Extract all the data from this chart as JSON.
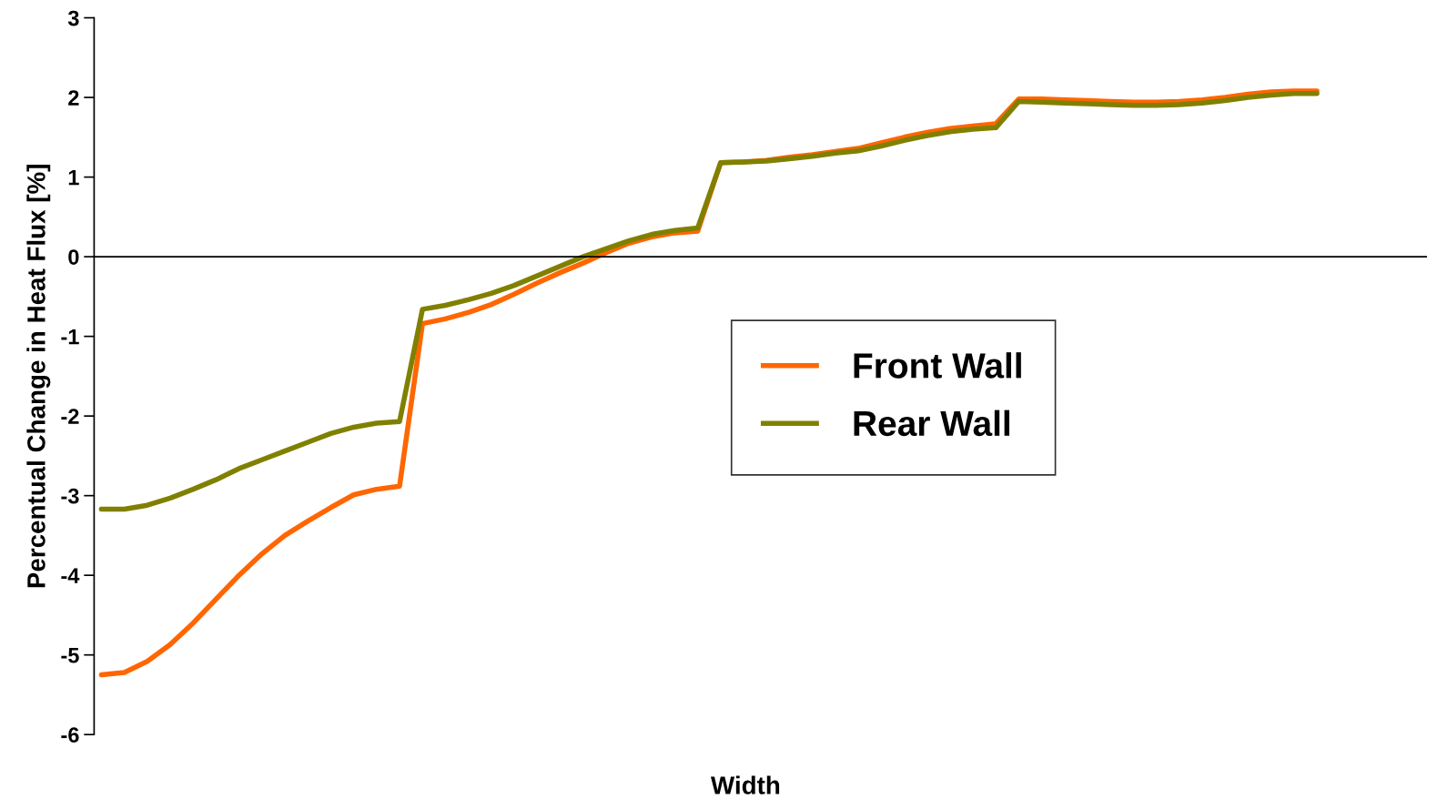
{
  "chart_data": {
    "type": "line",
    "xlabel": "Width",
    "ylabel": "Percentual Change in Heat Flux [%]",
    "categories": [
      null,
      null,
      null,
      null,
      null,
      null,
      null,
      null,
      null,
      null,
      null,
      null,
      null,
      null,
      null,
      null,
      null,
      null,
      null,
      null,
      null,
      null,
      null,
      null,
      null,
      null,
      null,
      null,
      null,
      null,
      null,
      null,
      null,
      null,
      null,
      null,
      null,
      null,
      null,
      null,
      null,
      null,
      null,
      null,
      null,
      null,
      null,
      null,
      null,
      null,
      null,
      null,
      null,
      null
    ],
    "series": [
      {
        "name": "Front Wall",
        "color": "#ff6600",
        "values": [
          -5.25,
          -5.22,
          -5.08,
          -4.87,
          -4.6,
          -4.3,
          -4.0,
          -3.73,
          -3.5,
          -3.32,
          -3.15,
          -2.99,
          -2.92,
          -2.88,
          -0.84,
          -0.78,
          -0.7,
          -0.6,
          -0.47,
          -0.33,
          -0.2,
          -0.08,
          0.05,
          0.17,
          0.25,
          0.3,
          0.32,
          1.18,
          1.19,
          1.21,
          1.25,
          1.28,
          1.32,
          1.36,
          1.43,
          1.5,
          1.56,
          1.61,
          1.64,
          1.67,
          1.98,
          1.98,
          1.97,
          1.96,
          1.95,
          1.94,
          1.94,
          1.95,
          1.97,
          2.0,
          2.04,
          2.07,
          2.08,
          2.08
        ]
      },
      {
        "name": "Rear Wall",
        "color": "#808000",
        "values": [
          -3.17,
          -3.17,
          -3.12,
          -3.03,
          -2.92,
          -2.8,
          -2.66,
          -2.55,
          -2.44,
          -2.33,
          -2.22,
          -2.14,
          -2.09,
          -2.07,
          -0.66,
          -0.61,
          -0.54,
          -0.46,
          -0.36,
          -0.24,
          -0.12,
          0.0,
          0.1,
          0.2,
          0.28,
          0.33,
          0.36,
          1.18,
          1.19,
          1.2,
          1.23,
          1.26,
          1.3,
          1.33,
          1.39,
          1.46,
          1.52,
          1.57,
          1.6,
          1.62,
          1.95,
          1.94,
          1.93,
          1.92,
          1.91,
          1.9,
          1.9,
          1.91,
          1.93,
          1.96,
          2.0,
          2.03,
          2.05,
          2.05
        ]
      }
    ],
    "ylim": [
      -6,
      3
    ],
    "yticks": [
      -6,
      -5,
      -4,
      -3,
      -2,
      -1,
      0,
      1,
      2,
      3
    ],
    "legend": "center",
    "marker": "none",
    "line_style": "solid"
  }
}
